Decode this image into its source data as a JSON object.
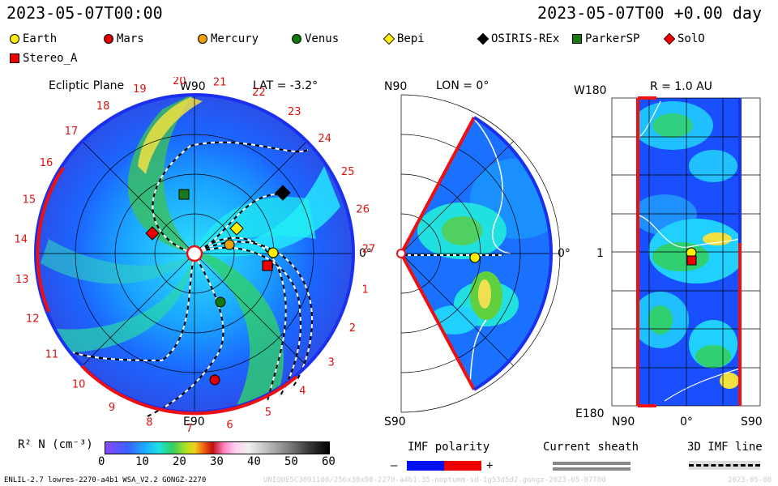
{
  "header": {
    "datetime_left": "2023-05-07T00:00",
    "datetime_right": "2023-05-07T00 +0.00 day"
  },
  "legend": [
    {
      "label": "Earth",
      "color": "#ffee00",
      "shape": "circle"
    },
    {
      "label": "Mars",
      "color": "#dd0000",
      "shape": "circle"
    },
    {
      "label": "Mercury",
      "color": "#f0a000",
      "shape": "circle"
    },
    {
      "label": "Venus",
      "color": "#0c7a0c",
      "shape": "circle"
    },
    {
      "label": "Bepi",
      "color": "#ffee00",
      "shape": "diamond"
    },
    {
      "label": "OSIRIS-REx",
      "color": "#000000",
      "shape": "diamond"
    },
    {
      "label": "ParkerSP",
      "color": "#1a7a1a",
      "shape": "square"
    },
    {
      "label": "SolO",
      "color": "#ee0000",
      "shape": "diamond"
    },
    {
      "label": "Stereo_A",
      "color": "#ee0000",
      "shape": "square"
    }
  ],
  "panels": {
    "ecliptic": {
      "title": "Ecliptic Plane",
      "top_label": "W90",
      "lat_label": "LAT = -3.2°",
      "bottom_label": "E90",
      "right_label": "0°",
      "carrington_labels": [
        "20",
        "21",
        "22",
        "23",
        "24",
        "25",
        "26",
        "27",
        "1",
        "2",
        "3",
        "4",
        "5",
        "6",
        "7",
        "8",
        "9",
        "10",
        "11",
        "12",
        "13",
        "14",
        "15",
        "16",
        "17",
        "18",
        "19"
      ]
    },
    "meridional": {
      "top_label": "N90",
      "lon_label": "LON = 0°",
      "bottom_label": "S90",
      "right_label": "0°"
    },
    "map": {
      "r_label": "R = 1.0 AU",
      "top_left": "W180",
      "mid_left": "1",
      "bottom_left": "E180",
      "x_labels": [
        "N90",
        "0°",
        "S90"
      ]
    }
  },
  "colorbar": {
    "label": "R² N (cm⁻³)",
    "ticks": [
      "0",
      "10",
      "20",
      "30",
      "40",
      "50",
      "60"
    ]
  },
  "imf": {
    "title": "IMF polarity",
    "minus": "–",
    "plus": "+",
    "negative_color": "#0010ee",
    "positive_color": "#ee0000"
  },
  "current_sheath": {
    "title": "Current sheath"
  },
  "imf_line": {
    "title": "3D IMF line"
  },
  "footer": {
    "model_info": "ENLIL-2.7 lowres-2270-a4b1 WSA_V2.2 GONGZ-2270",
    "run_info": "UNIQUE5C3091100/256x30x90-2270-a4b1.35-noptumm-sd-1g53d5d2.gongz-2023-05-07T00",
    "date_info": "2023-05-08"
  }
}
